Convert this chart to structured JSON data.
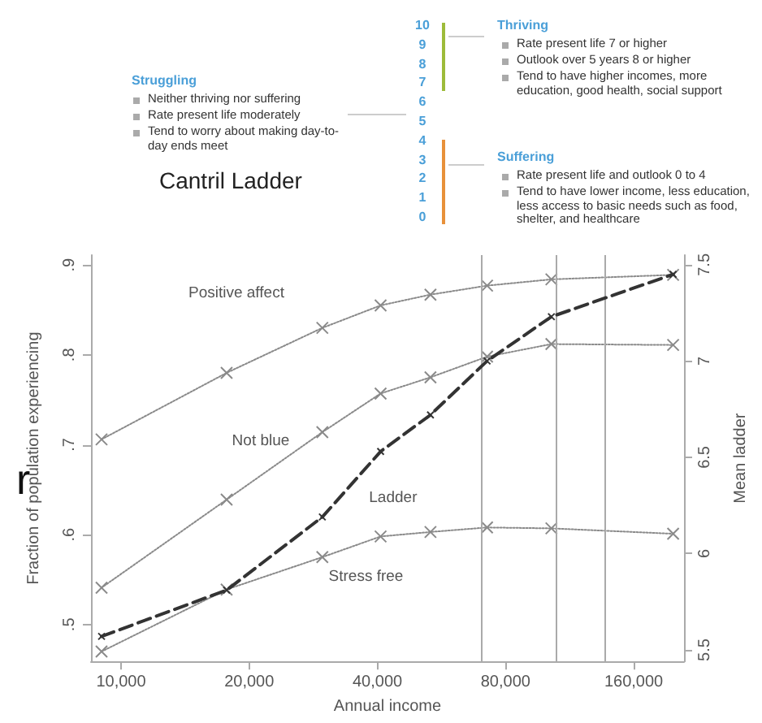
{
  "chart_data": {
    "type": "line",
    "xlabel": "Annual income",
    "ylabel": "Fraction of population experiencing",
    "y2label": "Mean ladder",
    "log": "x",
    "marker": "cross",
    "x": [
      9000,
      17700,
      29700,
      40700,
      53300,
      72400,
      102500,
      198000
    ],
    "xlim": [
      8500,
      210000
    ],
    "xticks": [
      {
        "value": 10000,
        "label": "10,000"
      },
      {
        "value": 20000,
        "label": "20,000"
      },
      {
        "value": 40000,
        "label": "40,000"
      },
      {
        "value": 80000,
        "label": "80,000"
      },
      {
        "value": 160000,
        "label": "160,000"
      }
    ],
    "ylim": [
      0.459,
      0.911
    ],
    "yticks": [
      {
        "value": 0.5,
        "label": ".5"
      },
      {
        "value": 0.6,
        "label": ".6"
      },
      {
        "value": 0.7,
        "label": ".7"
      },
      {
        "value": 0.8,
        "label": ".8"
      },
      {
        "value": 0.9,
        "label": ".9"
      }
    ],
    "y2lim": [
      5.44,
      7.55
    ],
    "y2ticks": [
      5.5,
      6,
      6.5,
      7,
      7.5
    ],
    "series": [
      {
        "name": "Positive affect",
        "color": "#8a8a8a",
        "line_style": "dotted",
        "values": [
          0.706,
          0.78,
          0.83,
          0.855,
          0.867,
          0.877,
          0.884,
          0.889
        ]
      },
      {
        "name": "Not blue",
        "color": "#8a8a8a",
        "line_style": "dotted",
        "values": [
          0.541,
          0.639,
          0.714,
          0.757,
          0.775,
          0.798,
          0.812,
          0.811
        ]
      },
      {
        "name": "Ladder",
        "color": "#333333",
        "line_style": "dashed",
        "axis": "y2",
        "values": [
          5.57,
          5.81,
          6.19,
          6.53,
          6.72,
          7.0,
          7.23,
          7.45
        ]
      },
      {
        "name": "Stress free",
        "color": "#8a8a8a",
        "line_style": "dotted",
        "values": [
          0.47,
          0.539,
          0.575,
          0.598,
          0.603,
          0.608,
          0.607,
          0.601
        ]
      }
    ],
    "ref_lines": [
      {
        "axis": "x",
        "value": 70000,
        "color": "#aaaaaa"
      },
      {
        "axis": "x",
        "value": 105000,
        "color": "#aaaaaa"
      },
      {
        "axis": "x",
        "value": 137000,
        "color": "#aaaaaa"
      }
    ],
    "annotations": [
      "Cantril Ladder",
      "Struggling",
      "Neither thriving nor suffering",
      "Rate present life moderately",
      "Tend to worry about making day-to-day ends meet",
      "Thriving",
      "Rate present life 7 or higher",
      "Outlook over 5 years 8 or higher",
      "Tend to have higher incomes, more education, good health, social support",
      "Suffering",
      "Rate present life and outlook 0 to 4",
      "Tend to have lower income, less education, less access to basic needs such as food, shelter, and healthcare",
      "10",
      "9",
      "8",
      "7",
      "6",
      "5",
      "4",
      "3",
      "2",
      "1",
      "0",
      "r"
    ]
  }
}
